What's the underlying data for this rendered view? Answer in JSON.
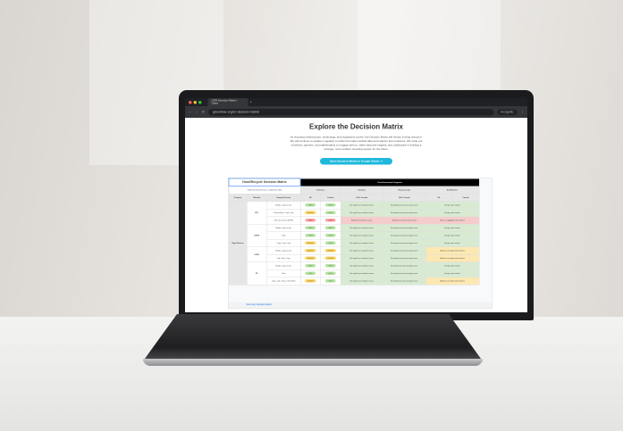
{
  "browser": {
    "tab_title": "CRR Decision Matrix - Glass",
    "url": "greenblue.org/crr-decision-matrix/",
    "profile": "Incognito"
  },
  "page": {
    "title": "Explore the Decision Matrix",
    "description": "As recycling infrastructure, technology, and regulations evolve, the Decision Matrix will remain a living resource. We will continue to update it regularly to reflect the latest verified data and industry best practices. We invite our members, partners, and stakeholders to engage with us, share data and insights, and collaborate in building a stronger, more resilient recycling system for the future.",
    "cta": "Open Decision Matrix in Google Sheets ↗"
  },
  "sheet": {
    "title": "How2Recycle Decision Matrix",
    "version": "Public Summary Version - September 2025",
    "categories_header": "Core Assessment Categories",
    "groups": [
      "Collection",
      "Sortation",
      "Reprocessing",
      "End Markets"
    ],
    "columns": [
      "Category",
      "Material",
      "Example Format",
      "US",
      "Canada",
      "US & Canada",
      "US & Canada",
      "US",
      "Canada"
    ],
    "category": "Rigid Plastics",
    "rows": [
      {
        "material": "PET",
        "format": "Bottles, Jugs & Jars",
        "us": ">80%",
        "ca": ">80%",
        "sort": "No significant sortation issues",
        "rep": "No significant reprocessing issues",
        "em": "Strong end markets",
        "c": "g"
      },
      {
        "material": "",
        "format": "Thermoforms, Cups, Lids",
        "us": "20-50%",
        "ca": ">50%",
        "sort": "No significant sortation issues",
        "rep": "No significant reprocessing issues",
        "em": "Strong end markets",
        "c": "g"
      },
      {
        "material": "",
        "format": "Other (e.g. Foam (EPS))",
        "us": "<20%",
        "ca": "<20%",
        "sort": "Significant sortation issues",
        "rep": "Significant reprocessing issues",
        "em": "None or negligible end markets",
        "c": "r"
      },
      {
        "material": "HDPE",
        "format": "Bottles, Jugs & Jars",
        "us": ">80%",
        "ca": ">80%",
        "sort": "No significant sortation issues",
        "rep": "No significant reprocessing issues",
        "em": "Strong end markets",
        "c": "g"
      },
      {
        "material": "",
        "format": "Tubs",
        "us": ">50%",
        "ca": ">50%",
        "sort": "No significant sortation issues",
        "rep": "No significant reprocessing issues",
        "em": "Strong end markets",
        "c": "g"
      },
      {
        "material": "",
        "format": "Trays, Cups, Lids",
        "us": "20-50%",
        "ca": ">50%",
        "sort": "No significant sortation issues",
        "rep": "No significant reprocessing issues",
        "em": "Strong end markets",
        "c": "g"
      },
      {
        "material": "LDPE",
        "format": "Bottles, Jugs & Jars",
        "us": "20-50%",
        "ca": "20-50%",
        "sort": "No significant sortation issues",
        "rep": "No significant reprocessing issues",
        "em": "Moderate strength end markets",
        "c": "y"
      },
      {
        "material": "",
        "format": "Lids, Tubs, Cups",
        "us": "20-50%",
        "ca": "20-50%",
        "sort": "No significant sortation issues",
        "rep": "No significant reprocessing issues",
        "em": "Moderate strength end markets",
        "c": "y"
      },
      {
        "material": "PP",
        "format": "Bottles, Jugs & Jars",
        "us": ">80%",
        "ca": ">80%",
        "sort": "No significant sortation issues",
        "rep": "No significant reprocessing issues",
        "em": "Strong end markets",
        "c": "g"
      },
      {
        "material": "",
        "format": "Tubs",
        "us": ">50%",
        "ca": ">50%",
        "sort": "No significant sortation issues",
        "rep": "No significant reprocessing issues",
        "em": "Strong end markets",
        "c": "g"
      },
      {
        "material": "",
        "format": "Cups, Lids, Trays, Clamshells",
        "us": "20-50%",
        "ca": ">50%",
        "sort": "No significant sortation issues",
        "rep": "No significant reprocessing issues",
        "em": "Moderate strength end markets",
        "c": "y"
      }
    ],
    "sheet_tab": "Summary Decision Matrix"
  }
}
